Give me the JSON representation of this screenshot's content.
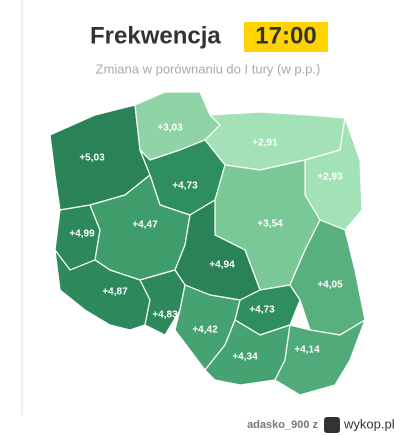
{
  "header": {
    "title": "Frekwencja",
    "time": "17:00",
    "subtitle": "Zmiana w porównaniu do I tury (w p.p.)"
  },
  "regions": [
    {
      "label": "+5,03"
    },
    {
      "label": "+3,03"
    },
    {
      "label": "+2,91"
    },
    {
      "label": "+2,93"
    },
    {
      "label": "+4,73"
    },
    {
      "label": "+4,99"
    },
    {
      "label": "+4,47"
    },
    {
      "label": "+3,54"
    },
    {
      "label": "+4,94"
    },
    {
      "label": "+4,05"
    },
    {
      "label": "+4,87"
    },
    {
      "label": "+4,83"
    },
    {
      "label": "+4,73"
    },
    {
      "label": "+4,42"
    },
    {
      "label": "+4,34"
    },
    {
      "label": "+4,14"
    }
  ],
  "footer": {
    "user": "adasko_900 z",
    "site": "wykop.pl"
  }
}
